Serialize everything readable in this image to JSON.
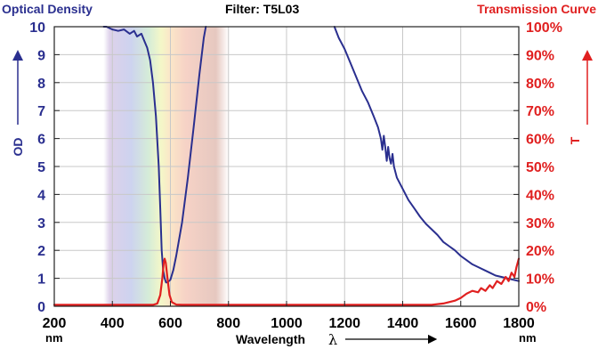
{
  "chart_data": {
    "type": "line",
    "header": {
      "left": "Optical Density",
      "center": "Filter: T5L03",
      "right": "Transmission Curve"
    },
    "xlabel": "Wavelength",
    "xlabel_symbol": "λ",
    "x_unit": "nm",
    "ylabel_left": "OD",
    "ylabel_right": "T",
    "xlim": [
      200,
      1800
    ],
    "ylim_left": [
      0,
      10
    ],
    "ylim_right": [
      0,
      100
    ],
    "x_ticks": [
      "200",
      "400",
      "600",
      "800",
      "1000",
      "1200",
      "1400",
      "1600",
      "1800"
    ],
    "y_left_ticks": [
      "0",
      "1",
      "2",
      "3",
      "4",
      "5",
      "6",
      "7",
      "8",
      "9",
      "10"
    ],
    "y_right_ticks": [
      "0%",
      "10%",
      "20%",
      "30%",
      "40%",
      "50%",
      "60%",
      "70%",
      "80%",
      "90%",
      "100%"
    ],
    "grid": true,
    "visible_band_nm": [
      370,
      800
    ],
    "series": [
      {
        "axis": "left",
        "color": "#2a2f8f",
        "points": [
          [
            370,
            10
          ],
          [
            380,
            10
          ],
          [
            400,
            9.9
          ],
          [
            420,
            9.85
          ],
          [
            440,
            9.9
          ],
          [
            460,
            9.75
          ],
          [
            475,
            9.85
          ],
          [
            485,
            9.65
          ],
          [
            500,
            9.75
          ],
          [
            510,
            9.5
          ],
          [
            520,
            9.25
          ],
          [
            530,
            8.8
          ],
          [
            540,
            8.0
          ],
          [
            550,
            6.8
          ],
          [
            560,
            5.0
          ],
          [
            565,
            3.5
          ],
          [
            570,
            2.0
          ],
          [
            575,
            1.3
          ],
          [
            580,
            1.0
          ],
          [
            585,
            0.85
          ],
          [
            590,
            0.85
          ],
          [
            600,
            0.95
          ],
          [
            610,
            1.3
          ],
          [
            620,
            1.8
          ],
          [
            640,
            3.0
          ],
          [
            660,
            4.6
          ],
          [
            680,
            6.4
          ],
          [
            700,
            8.3
          ],
          [
            715,
            9.6
          ],
          [
            722,
            10
          ]
        ]
      },
      {
        "axis": "left",
        "color": "#2a2f8f",
        "points": [
          [
            1165,
            10
          ],
          [
            1180,
            9.6
          ],
          [
            1200,
            9.2
          ],
          [
            1220,
            8.7
          ],
          [
            1240,
            8.2
          ],
          [
            1260,
            7.7
          ],
          [
            1280,
            7.3
          ],
          [
            1300,
            6.8
          ],
          [
            1315,
            6.4
          ],
          [
            1325,
            6.0
          ],
          [
            1330,
            5.6
          ],
          [
            1335,
            6.1
          ],
          [
            1340,
            5.7
          ],
          [
            1345,
            5.2
          ],
          [
            1350,
            5.7
          ],
          [
            1355,
            5.3
          ],
          [
            1360,
            5.1
          ],
          [
            1365,
            5.45
          ],
          [
            1370,
            5.0
          ],
          [
            1380,
            4.6
          ],
          [
            1400,
            4.2
          ],
          [
            1420,
            3.8
          ],
          [
            1440,
            3.5
          ],
          [
            1460,
            3.2
          ],
          [
            1480,
            2.95
          ],
          [
            1500,
            2.75
          ],
          [
            1520,
            2.55
          ],
          [
            1540,
            2.3
          ],
          [
            1560,
            2.15
          ],
          [
            1580,
            2.0
          ],
          [
            1600,
            1.8
          ],
          [
            1620,
            1.65
          ],
          [
            1640,
            1.5
          ],
          [
            1660,
            1.4
          ],
          [
            1680,
            1.3
          ],
          [
            1700,
            1.2
          ],
          [
            1720,
            1.1
          ],
          [
            1740,
            1.05
          ],
          [
            1760,
            1.0
          ],
          [
            1780,
            0.95
          ],
          [
            1800,
            0.9
          ]
        ]
      },
      {
        "axis": "right",
        "color": "#e02020",
        "points": [
          [
            200,
            0.5
          ],
          [
            540,
            0.5
          ],
          [
            555,
            1.0
          ],
          [
            565,
            4.0
          ],
          [
            572,
            10.0
          ],
          [
            577,
            15.5
          ],
          [
            580,
            17.0
          ],
          [
            584,
            15.5
          ],
          [
            590,
            10.0
          ],
          [
            597,
            4.0
          ],
          [
            605,
            1.5
          ],
          [
            620,
            0.6
          ],
          [
            640,
            0.5
          ],
          [
            1500,
            0.5
          ],
          [
            1540,
            1.0
          ],
          [
            1580,
            2.0
          ],
          [
            1600,
            3.0
          ],
          [
            1620,
            4.5
          ],
          [
            1640,
            5.5
          ],
          [
            1660,
            5.0
          ],
          [
            1670,
            6.5
          ],
          [
            1685,
            5.5
          ],
          [
            1700,
            7.5
          ],
          [
            1710,
            6.5
          ],
          [
            1725,
            9.0
          ],
          [
            1740,
            8.0
          ],
          [
            1755,
            10.5
          ],
          [
            1765,
            9.0
          ],
          [
            1775,
            12.0
          ],
          [
            1785,
            10.5
          ],
          [
            1792,
            14.0
          ],
          [
            1800,
            17.0
          ]
        ]
      }
    ]
  }
}
